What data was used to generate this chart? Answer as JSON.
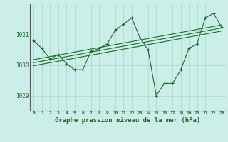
{
  "title": "Graphe pression niveau de la mer (hPa)",
  "bg_color": "#cceee8",
  "grid_color": "#aaddcc",
  "line_color": "#1a6b2a",
  "ylim": [
    1028.5,
    1032.0
  ],
  "yticks": [
    1029,
    1030,
    1031
  ],
  "pressure_data": [
    1030.8,
    1030.55,
    1030.2,
    1030.35,
    1030.05,
    1029.85,
    1029.85,
    1030.45,
    1030.55,
    1030.7,
    1031.15,
    1031.35,
    1031.55,
    1030.9,
    1030.5,
    1029.0,
    1029.4,
    1029.4,
    1029.85,
    1030.55,
    1030.7,
    1031.55,
    1031.7,
    1031.25
  ],
  "trend_lines": [
    [
      1030.18,
      1031.32
    ],
    [
      1030.08,
      1031.22
    ],
    [
      1029.98,
      1031.12
    ]
  ]
}
